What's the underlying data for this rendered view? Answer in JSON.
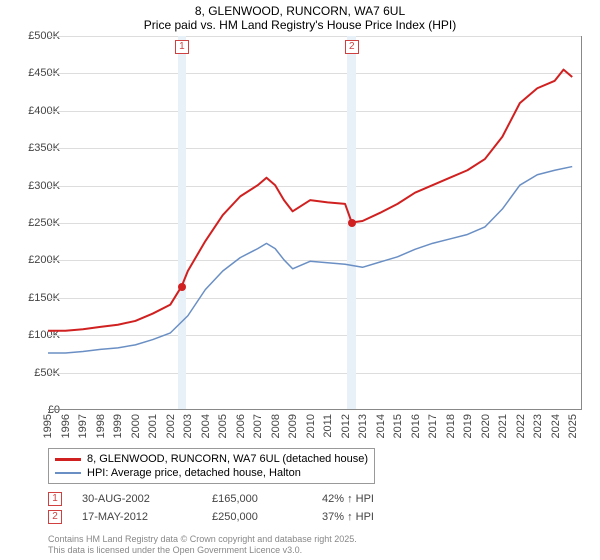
{
  "title_line1": "8, GLENWOOD, RUNCORN, WA7 6UL",
  "title_line2": "Price paid vs. HM Land Registry's House Price Index (HPI)",
  "chart": {
    "type": "line",
    "x_range": [
      1995,
      2025.5
    ],
    "y_range": [
      0,
      500000
    ],
    "y_ticks": [
      0,
      50000,
      100000,
      150000,
      200000,
      250000,
      300000,
      350000,
      400000,
      450000,
      500000
    ],
    "y_tick_labels": [
      "£0",
      "£50K",
      "£100K",
      "£150K",
      "£200K",
      "£250K",
      "£300K",
      "£350K",
      "£400K",
      "£450K",
      "£500K"
    ],
    "x_ticks": [
      1995,
      1996,
      1997,
      1998,
      1999,
      2000,
      2001,
      2002,
      2003,
      2004,
      2005,
      2006,
      2007,
      2008,
      2009,
      2010,
      2011,
      2012,
      2013,
      2014,
      2015,
      2016,
      2017,
      2018,
      2019,
      2020,
      2021,
      2022,
      2023,
      2024,
      2025
    ],
    "background_color": "#ffffff",
    "grid_color": "#dddddd",
    "axis_color": "#888888",
    "band_color": "#e8f0f8",
    "series": {
      "price_paid": {
        "label": "8, GLENWOOD, RUNCORN, WA7 6UL (detached house)",
        "color": "#d02020",
        "width": 2,
        "data": [
          [
            1995,
            105000
          ],
          [
            1996,
            105000
          ],
          [
            1997,
            107000
          ],
          [
            1998,
            110000
          ],
          [
            1999,
            113000
          ],
          [
            2000,
            118000
          ],
          [
            2001,
            128000
          ],
          [
            2002,
            140000
          ],
          [
            2002.66,
            165000
          ],
          [
            2003,
            185000
          ],
          [
            2004,
            225000
          ],
          [
            2005,
            260000
          ],
          [
            2006,
            285000
          ],
          [
            2007,
            300000
          ],
          [
            2007.5,
            310000
          ],
          [
            2008,
            300000
          ],
          [
            2008.5,
            280000
          ],
          [
            2009,
            265000
          ],
          [
            2010,
            280000
          ],
          [
            2011,
            277000
          ],
          [
            2012,
            275000
          ],
          [
            2012.38,
            250000
          ],
          [
            2013,
            252000
          ],
          [
            2014,
            263000
          ],
          [
            2015,
            275000
          ],
          [
            2016,
            290000
          ],
          [
            2017,
            300000
          ],
          [
            2018,
            310000
          ],
          [
            2019,
            320000
          ],
          [
            2020,
            335000
          ],
          [
            2021,
            365000
          ],
          [
            2022,
            410000
          ],
          [
            2023,
            430000
          ],
          [
            2024,
            440000
          ],
          [
            2024.5,
            455000
          ],
          [
            2025,
            445000
          ]
        ]
      },
      "hpi": {
        "label": "HPI: Average price, detached house, Halton",
        "color": "#6a8fc4",
        "width": 1.5,
        "data": [
          [
            1995,
            75000
          ],
          [
            1996,
            75000
          ],
          [
            1997,
            77000
          ],
          [
            1998,
            80000
          ],
          [
            1999,
            82000
          ],
          [
            2000,
            86000
          ],
          [
            2001,
            93000
          ],
          [
            2002,
            102000
          ],
          [
            2003,
            125000
          ],
          [
            2004,
            160000
          ],
          [
            2005,
            185000
          ],
          [
            2006,
            203000
          ],
          [
            2007,
            215000
          ],
          [
            2007.5,
            222000
          ],
          [
            2008,
            215000
          ],
          [
            2008.5,
            200000
          ],
          [
            2009,
            188000
          ],
          [
            2010,
            198000
          ],
          [
            2011,
            196000
          ],
          [
            2012,
            194000
          ],
          [
            2013,
            190000
          ],
          [
            2014,
            197000
          ],
          [
            2015,
            204000
          ],
          [
            2016,
            214000
          ],
          [
            2017,
            222000
          ],
          [
            2018,
            228000
          ],
          [
            2019,
            234000
          ],
          [
            2020,
            244000
          ],
          [
            2021,
            268000
          ],
          [
            2022,
            300000
          ],
          [
            2023,
            314000
          ],
          [
            2024,
            320000
          ],
          [
            2025,
            325000
          ]
        ]
      }
    },
    "sale_bands": [
      {
        "id": "1",
        "start": 2002.4,
        "end": 2002.9
      },
      {
        "id": "2",
        "start": 2012.1,
        "end": 2012.6
      }
    ],
    "sale_points": [
      {
        "id": "1",
        "x": 2002.66,
        "y": 165000
      },
      {
        "id": "2",
        "x": 2012.38,
        "y": 250000
      }
    ]
  },
  "legend": {
    "series1": "8, GLENWOOD, RUNCORN, WA7 6UL (detached house)",
    "series2": "HPI: Average price, detached house, Halton"
  },
  "sales": [
    {
      "id": "1",
      "date": "30-AUG-2002",
      "price": "£165,000",
      "hpi": "42% ↑ HPI"
    },
    {
      "id": "2",
      "date": "17-MAY-2012",
      "price": "£250,000",
      "hpi": "37% ↑ HPI"
    }
  ],
  "attribution_line1": "Contains HM Land Registry data © Crown copyright and database right 2025.",
  "attribution_line2": "This data is licensed under the Open Government Licence v3.0."
}
